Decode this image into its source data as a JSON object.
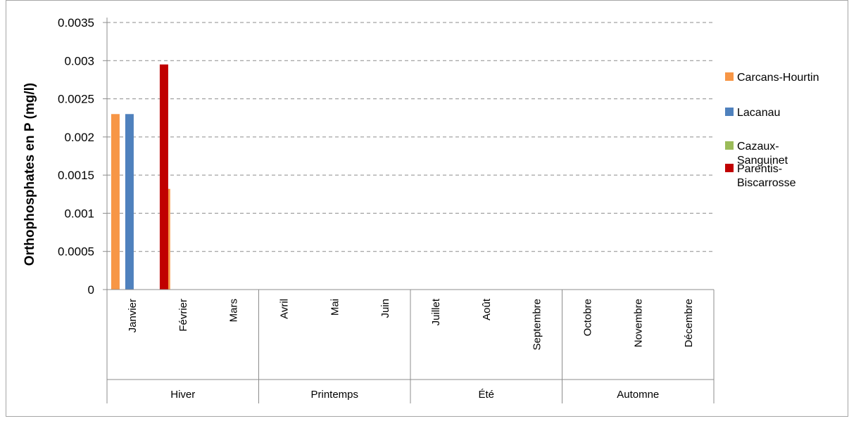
{
  "chart_data": {
    "type": "bar",
    "title": "",
    "xlabel": "",
    "ylabel": "Orthophosphates en P (mg/l)",
    "ylim": [
      0,
      0.0035
    ],
    "yticks": [
      "0",
      "0.0005",
      "0.001",
      "0.0015",
      "0.002",
      "0.0025",
      "0.003",
      "0.0035"
    ],
    "grid": true,
    "legend_position": "right",
    "categories": [
      "Janvier",
      "Février",
      "Mars",
      "Avril",
      "Mai",
      "Juin",
      "Juillet",
      "Août",
      "Septembre",
      "Octobre",
      "Novembre",
      "Décembre"
    ],
    "groups": [
      {
        "label": "Hiver",
        "span": 3
      },
      {
        "label": "Printemps",
        "span": 3
      },
      {
        "label": "Été",
        "span": 3
      },
      {
        "label": "Automne",
        "span": 3
      }
    ],
    "series": [
      {
        "name": "Carcans-Hourtin",
        "legend_lines": [
          "Carcans-Hourtin"
        ],
        "color": "#F79646",
        "values": [
          0.0023,
          0.00132,
          0,
          0,
          0,
          0,
          0,
          0,
          0,
          0,
          0,
          0
        ]
      },
      {
        "name": "Lacanau",
        "legend_lines": [
          "Lacanau"
        ],
        "color": "#4F81BD",
        "values": [
          0.0023,
          0,
          0,
          0,
          0,
          0,
          0,
          0,
          0,
          0,
          0,
          0
        ]
      },
      {
        "name": "Cazaux-Sanguinet",
        "legend_lines": [
          "Cazaux-",
          "Sanguinet"
        ],
        "color": "#9BBB59",
        "values": [
          0,
          0,
          0,
          0,
          0,
          0,
          0,
          0,
          0,
          0,
          0,
          0
        ]
      },
      {
        "name": "Parentis-Biscarrosse",
        "legend_lines": [
          "Parentis-",
          "Biscarrosse"
        ],
        "color": "#C00000",
        "values": [
          0.00295,
          0,
          0,
          0,
          0,
          0,
          0,
          0,
          0,
          0,
          0,
          0
        ]
      }
    ]
  }
}
